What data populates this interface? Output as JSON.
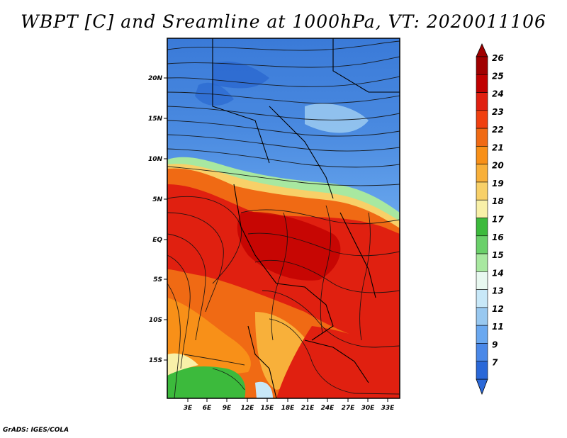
{
  "title": "WBPT [C] and Sreamline at 1000hPa, VT: 2020011106",
  "footer": "GrADS: IGES/COLA",
  "map": {
    "lat_labels": [
      "20N",
      "15N",
      "10N",
      "5N",
      "EQ",
      "5S",
      "10S",
      "15S"
    ],
    "lon_labels": [
      "3E",
      "6E",
      "9E",
      "12E",
      "15E",
      "18E",
      "21E",
      "24E",
      "27E",
      "30E",
      "33E"
    ]
  },
  "colorbar": {
    "labels": [
      "26",
      "25",
      "24",
      "23",
      "22",
      "21",
      "20",
      "19",
      "18",
      "17",
      "16",
      "15",
      "14",
      "13",
      "12",
      "11",
      "9",
      "7"
    ],
    "colors": [
      "#a00000",
      "#c00000",
      "#e02010",
      "#f04010",
      "#f06a14",
      "#f89018",
      "#f8b03a",
      "#f8d068",
      "#f8f0a8",
      "#3cba3c",
      "#6ad06a",
      "#a8e8a0",
      "#e8f8f0",
      "#c8e8f8",
      "#98c8f0",
      "#6aa8f0",
      "#4a88e8",
      "#2a68d8"
    ],
    "top_color": "#a00000",
    "bottom_color": "#2a68d8"
  }
}
